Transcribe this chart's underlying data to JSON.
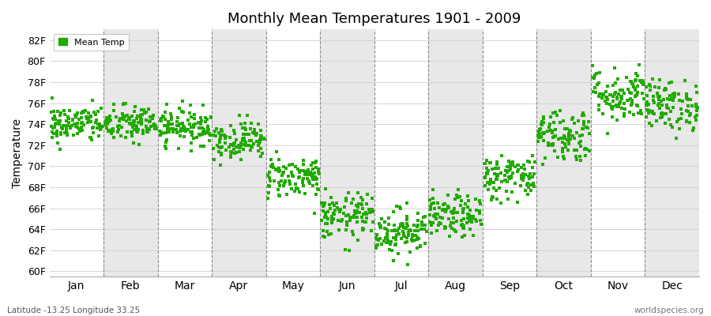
{
  "title": "Monthly Mean Temperatures 1901 - 2009",
  "ylabel": "Temperature",
  "xlabel_labels": [
    "Jan",
    "Feb",
    "Mar",
    "Apr",
    "May",
    "Jun",
    "Jul",
    "Aug",
    "Sep",
    "Oct",
    "Nov",
    "Dec"
  ],
  "ytick_labels": [
    "60F",
    "62F",
    "64F",
    "66F",
    "68F",
    "70F",
    "72F",
    "74F",
    "76F",
    "78F",
    "80F",
    "82F"
  ],
  "ytick_values": [
    60,
    62,
    64,
    66,
    68,
    70,
    72,
    74,
    76,
    78,
    80,
    82
  ],
  "ylim": [
    59.5,
    83.0
  ],
  "marker_color": "#22AA00",
  "marker": "s",
  "marker_size": 2.5,
  "bg_color": "#ffffff",
  "band_color": "#e8e8e8",
  "legend_label": "Mean Temp",
  "bottom_left_text": "Latitude -13.25 Longitude 33.25",
  "bottom_right_text": "worldspecies.org",
  "n_years": 109,
  "monthly_means": [
    74.0,
    74.0,
    73.8,
    72.5,
    69.0,
    65.2,
    63.8,
    65.2,
    69.0,
    73.0,
    76.8,
    75.8
  ],
  "monthly_stds": [
    0.9,
    0.9,
    0.85,
    0.9,
    1.0,
    1.1,
    1.1,
    1.0,
    1.1,
    1.3,
    1.3,
    1.2
  ],
  "random_seed": 42
}
